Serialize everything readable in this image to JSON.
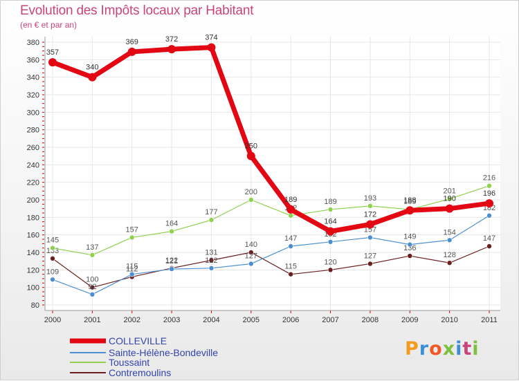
{
  "header": {
    "title": "Evolution des Impôts locaux par Habitant",
    "subtitle": "(en € et par an)"
  },
  "logo": {
    "text": "Proxiti"
  },
  "chart_data": {
    "type": "line",
    "title": "Evolution des Impôts locaux par Habitant",
    "subtitle": "(en € et par an)",
    "xlabel": "",
    "ylabel": "",
    "x": [
      "2000",
      "2001",
      "2002",
      "2003",
      "2004",
      "2005",
      "2006",
      "2007",
      "2008",
      "2009",
      "2010",
      "2011"
    ],
    "ylim": [
      80,
      380
    ],
    "yticks": [
      80,
      100,
      120,
      140,
      160,
      180,
      200,
      220,
      240,
      260,
      280,
      300,
      320,
      340,
      360,
      380
    ],
    "grid": true,
    "legend_position": "bottom-left",
    "series": [
      {
        "name": "COLLEVILLE",
        "color": "#e30613",
        "values": [
          357,
          340,
          369,
          372,
          374,
          250,
          189,
          164,
          172,
          188,
          190,
          196
        ]
      },
      {
        "name": "Sainte-Hélène-Bondeville",
        "color": "#4b8fd0",
        "values": [
          109,
          92,
          115,
          121,
          122,
          127,
          147,
          152,
          157,
          149,
          154,
          182
        ]
      },
      {
        "name": "Toussaint",
        "color": "#8fd14f",
        "values": [
          145,
          137,
          157,
          164,
          177,
          200,
          182,
          189,
          193,
          189,
          201,
          216
        ]
      },
      {
        "name": "Contremoulins",
        "color": "#6b1e1e",
        "values": [
          133,
          100,
          112,
          122,
          131,
          140,
          115,
          120,
          127,
          136,
          128,
          147
        ]
      }
    ]
  }
}
